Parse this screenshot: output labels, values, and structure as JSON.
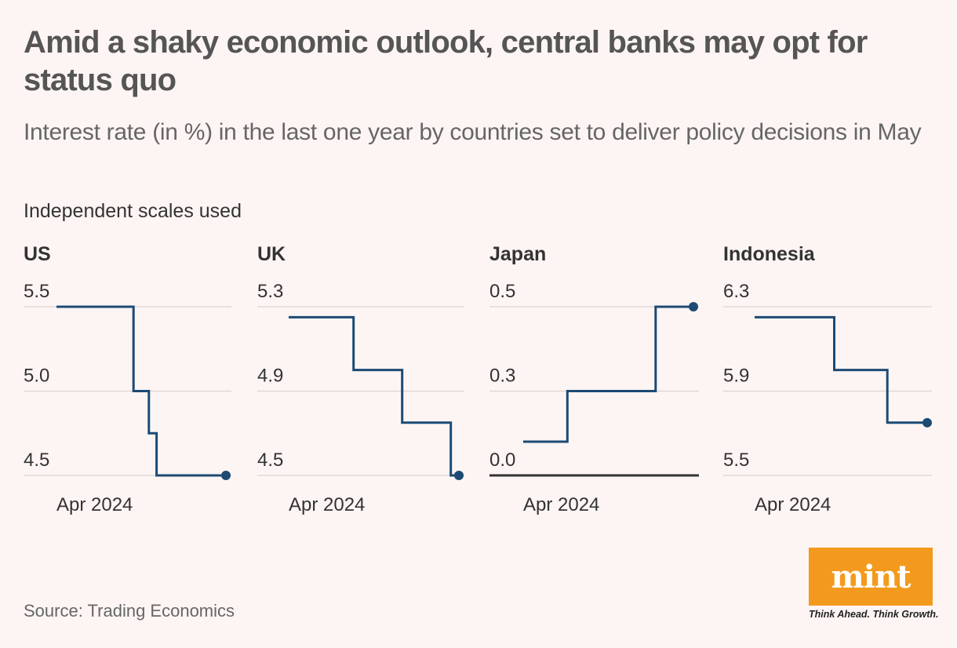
{
  "header": {
    "title": "Amid a shaky economic outlook, central banks may opt for status quo",
    "subtitle": "Interest rate (in %) in the last one year by countries set to deliver policy decisions in May",
    "note": "Independent scales used"
  },
  "footer": {
    "source": "Source: Trading Economics",
    "logo_text": "mint",
    "tagline": "Think Ahead. Think Growth."
  },
  "colors": {
    "line": "#1c4a74",
    "grid": "#d9d4d2",
    "baseline": "#333333",
    "label": "#333333",
    "logo_bg": "#f39a1e"
  },
  "chart_data": [
    {
      "type": "line",
      "title": "US",
      "step": true,
      "ylim": [
        4.5,
        5.5
      ],
      "yticks": [
        "5.5",
        "5.0",
        "4.5"
      ],
      "ytick_values": [
        5.5,
        5.0,
        4.5
      ],
      "x_tick_label": "Apr 2024",
      "series": [
        {
          "name": "Interest rate",
          "values": [
            5.5,
            5.5,
            5.5,
            5.5,
            5.5,
            5.5,
            5.5,
            5.5,
            5.5,
            5.5,
            5.0,
            5.0,
            4.75,
            4.5,
            4.5,
            4.5,
            4.5,
            4.5,
            4.5,
            4.5,
            4.5,
            4.5,
            4.5
          ]
        }
      ],
      "zero_baseline": false
    },
    {
      "type": "line",
      "title": "UK",
      "step": true,
      "ylim": [
        4.5,
        5.3
      ],
      "yticks": [
        "5.3",
        "4.9",
        "4.5"
      ],
      "ytick_values": [
        5.3,
        4.9,
        4.5
      ],
      "x_tick_label": "Apr 2024",
      "series": [
        {
          "name": "Interest rate",
          "values": [
            5.25,
            5.25,
            5.25,
            5.25,
            5.25,
            5.25,
            5.25,
            5.25,
            5.0,
            5.0,
            5.0,
            5.0,
            5.0,
            5.0,
            4.75,
            4.75,
            4.75,
            4.75,
            4.75,
            4.75,
            4.5,
            4.5
          ]
        }
      ],
      "zero_baseline": false
    },
    {
      "type": "line",
      "title": "Japan",
      "step": true,
      "ylim": [
        0.0,
        0.5
      ],
      "yticks": [
        "0.5",
        "0.3",
        "0.0"
      ],
      "ytick_values": [
        0.5,
        0.25,
        0.0
      ],
      "x_tick_label": "Apr 2024",
      "series": [
        {
          "name": "Interest rate",
          "values": [
            0.1,
            0.1,
            0.1,
            0.1,
            0.1,
            0.1,
            0.1,
            0.25,
            0.25,
            0.25,
            0.25,
            0.25,
            0.25,
            0.25,
            0.25,
            0.25,
            0.25,
            0.25,
            0.25,
            0.25,
            0.25,
            0.5,
            0.5,
            0.5,
            0.5,
            0.5,
            0.5,
            0.5
          ]
        }
      ],
      "zero_baseline": true
    },
    {
      "type": "line",
      "title": "Indonesia",
      "step": true,
      "ylim": [
        5.5,
        6.3
      ],
      "yticks": [
        "6.3",
        "5.9",
        "5.5"
      ],
      "ytick_values": [
        6.3,
        5.9,
        5.5
      ],
      "x_tick_label": "Apr 2024",
      "series": [
        {
          "name": "Interest rate",
          "values": [
            6.25,
            6.25,
            6.25,
            6.25,
            6.25,
            6.25,
            6.25,
            6.25,
            6.25,
            6.25,
            6.25,
            6.25,
            6.0,
            6.0,
            6.0,
            6.0,
            6.0,
            6.0,
            6.0,
            6.0,
            5.75,
            5.75,
            5.75,
            5.75,
            5.75,
            5.75,
            5.75
          ]
        }
      ],
      "zero_baseline": false
    }
  ]
}
